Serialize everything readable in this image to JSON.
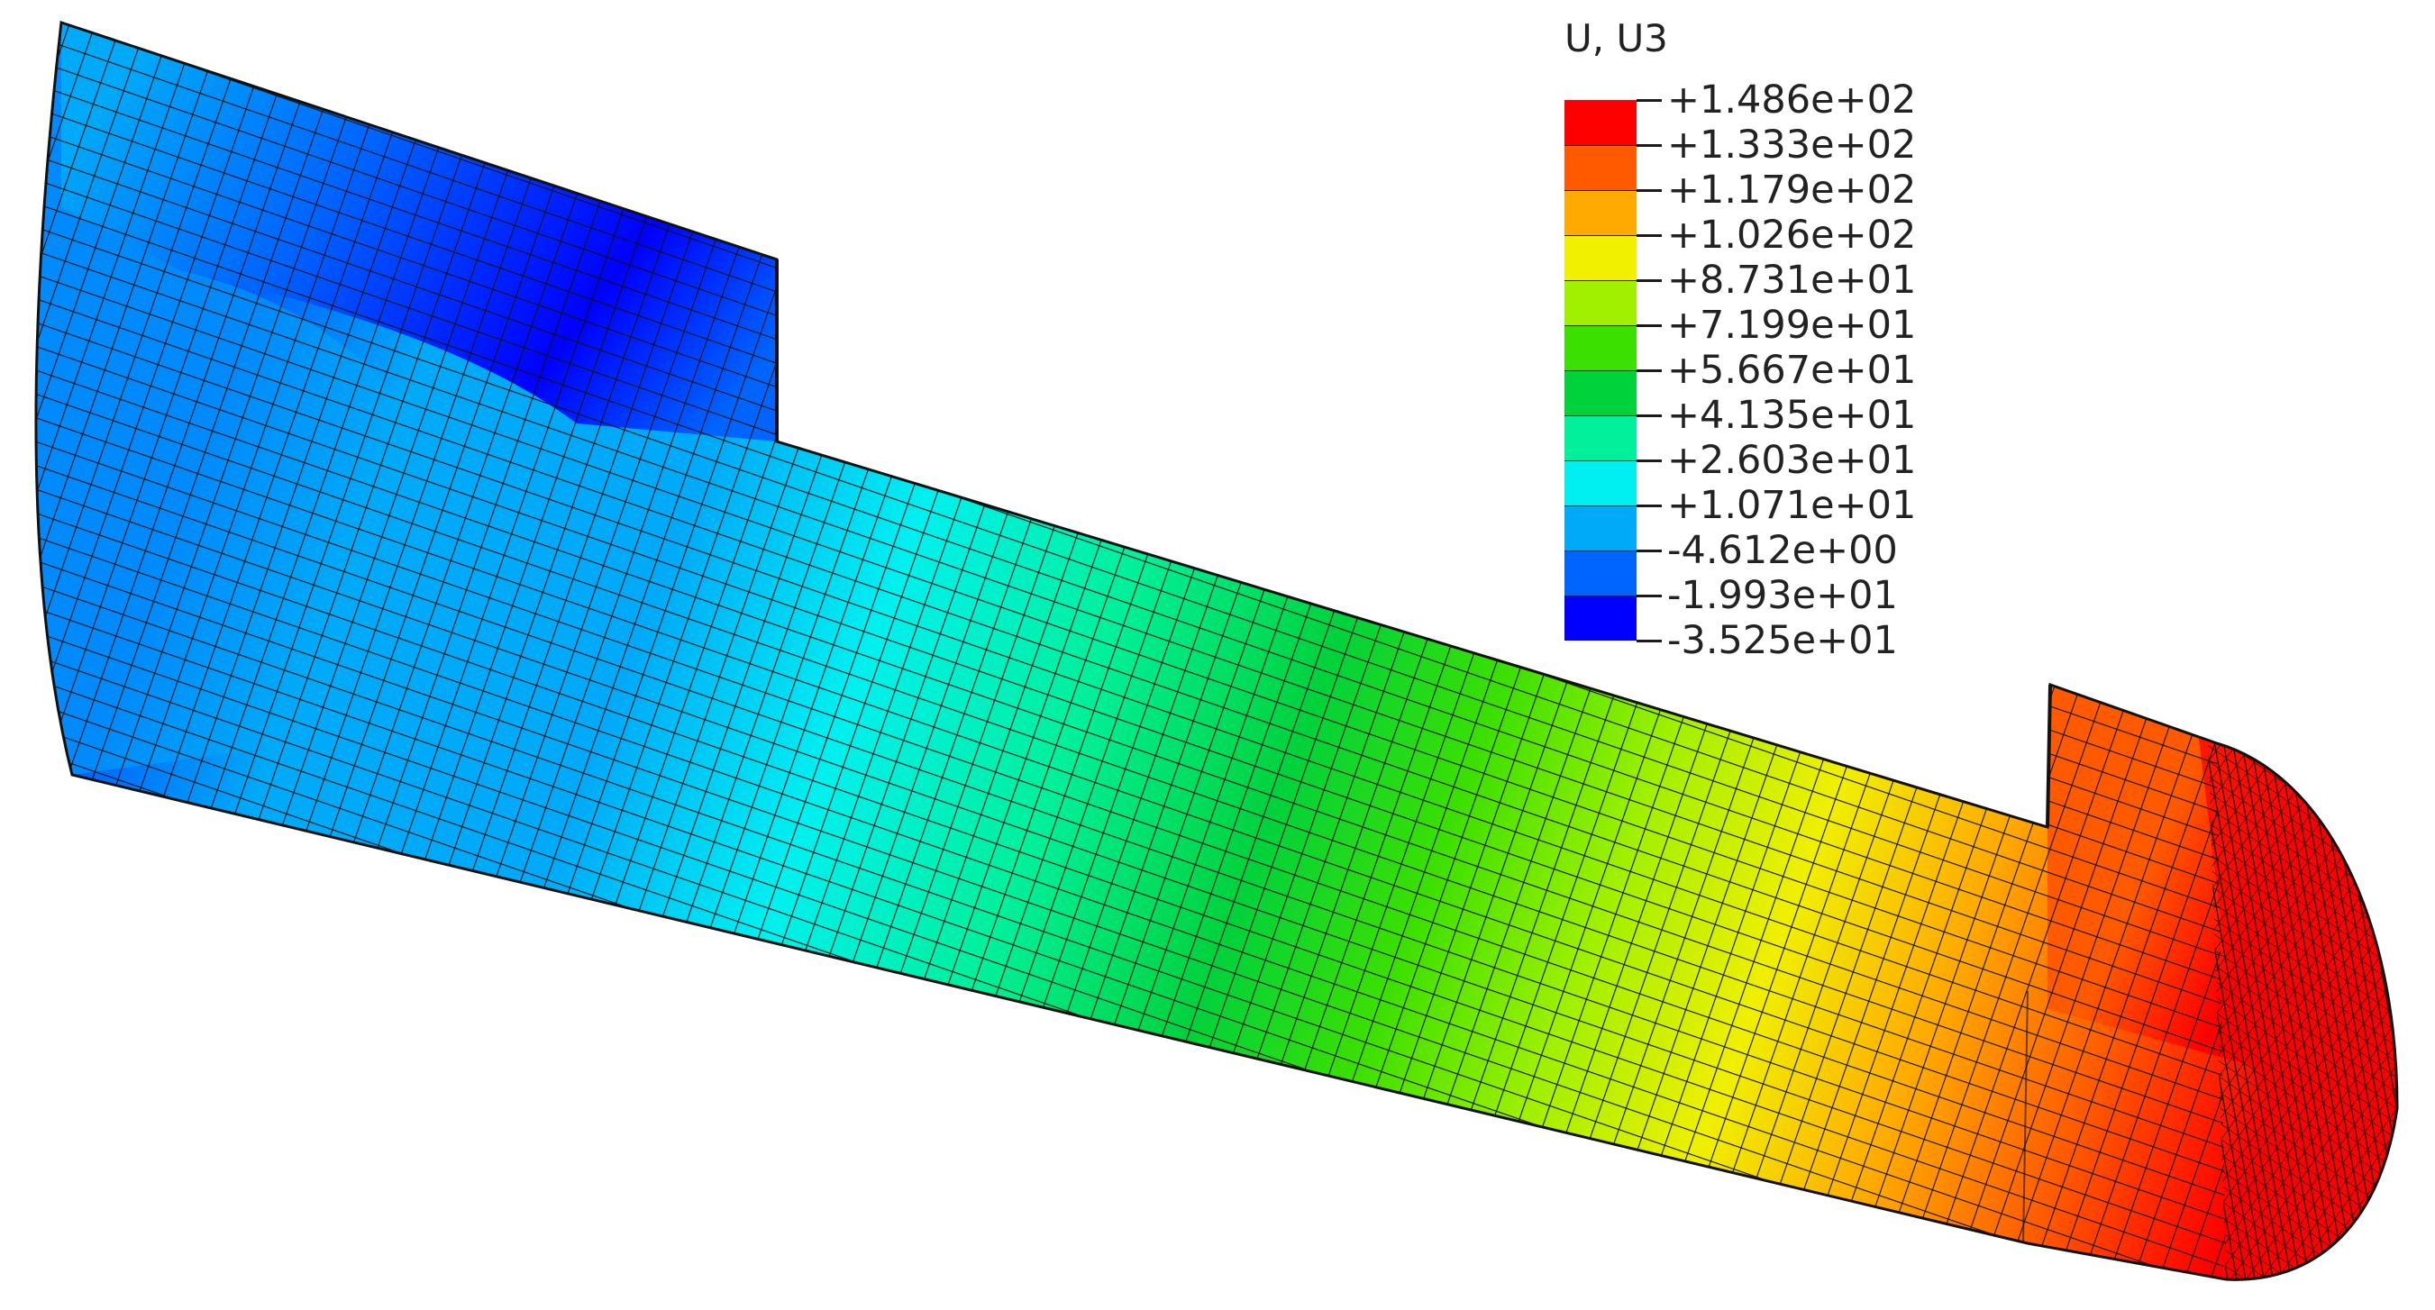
{
  "legend": {
    "title": "U, U3",
    "colors": [
      "#ff0000",
      "#ff5a00",
      "#ffaa00",
      "#f0f000",
      "#a0f000",
      "#3ce000",
      "#00d23c",
      "#00f09c",
      "#00f0f0",
      "#00aaf8",
      "#0064ff",
      "#0000ff"
    ],
    "values": [
      "+1.486e+02",
      "+1.333e+02",
      "+1.179e+02",
      "+1.026e+02",
      "+8.731e+01",
      "+7.199e+01",
      "+5.667e+01",
      "+4.135e+01",
      "+2.603e+01",
      "+1.071e+01",
      "-4.612e+00",
      "-1.993e+01",
      "-3.525e+01"
    ]
  }
}
